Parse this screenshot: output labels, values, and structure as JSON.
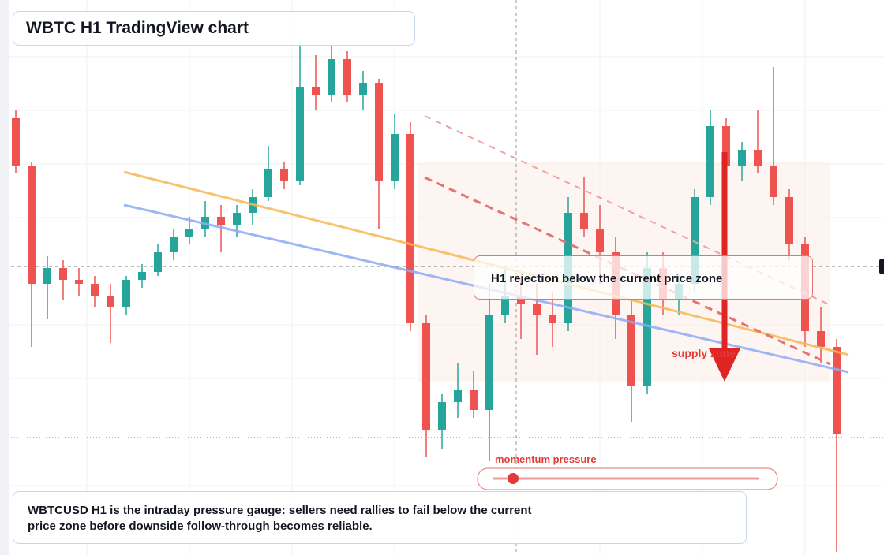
{
  "chart_data": {
    "type": "candlestick",
    "title": "WBTC H1 TradingView chart",
    "ohlc": [
      [
        850,
        860,
        780,
        790
      ],
      [
        790,
        795,
        560,
        640
      ],
      [
        640,
        675,
        595,
        660
      ],
      [
        660,
        670,
        620,
        645
      ],
      [
        645,
        660,
        625,
        640
      ],
      [
        640,
        650,
        610,
        625
      ],
      [
        625,
        640,
        565,
        610
      ],
      [
        610,
        650,
        600,
        645
      ],
      [
        645,
        665,
        635,
        655
      ],
      [
        655,
        690,
        650,
        680
      ],
      [
        680,
        710,
        670,
        700
      ],
      [
        700,
        725,
        690,
        710
      ],
      [
        710,
        745,
        700,
        725
      ],
      [
        725,
        740,
        680,
        715
      ],
      [
        715,
        740,
        700,
        730
      ],
      [
        730,
        760,
        715,
        750
      ],
      [
        750,
        815,
        745,
        785
      ],
      [
        785,
        795,
        760,
        770
      ],
      [
        770,
        945,
        765,
        890
      ],
      [
        890,
        930,
        860,
        880
      ],
      [
        880,
        945,
        870,
        925
      ],
      [
        925,
        935,
        870,
        880
      ],
      [
        880,
        910,
        860,
        895
      ],
      [
        895,
        900,
        710,
        770
      ],
      [
        770,
        855,
        760,
        830
      ],
      [
        830,
        845,
        580,
        590
      ],
      [
        590,
        600,
        420,
        455
      ],
      [
        455,
        500,
        430,
        490
      ],
      [
        490,
        540,
        470,
        505
      ],
      [
        505,
        530,
        470,
        480
      ],
      [
        480,
        640,
        415,
        600
      ],
      [
        600,
        660,
        590,
        625
      ],
      [
        625,
        650,
        570,
        615
      ],
      [
        615,
        640,
        550,
        600
      ],
      [
        600,
        630,
        560,
        590
      ],
      [
        590,
        750,
        580,
        730
      ],
      [
        730,
        775,
        700,
        710
      ],
      [
        710,
        740,
        640,
        680
      ],
      [
        680,
        700,
        570,
        600
      ],
      [
        600,
        620,
        465,
        510
      ],
      [
        510,
        680,
        500,
        660
      ],
      [
        660,
        680,
        600,
        620
      ],
      [
        620,
        650,
        600,
        640
      ],
      [
        640,
        760,
        630,
        750
      ],
      [
        750,
        860,
        740,
        840
      ],
      [
        840,
        850,
        770,
        790
      ],
      [
        790,
        820,
        770,
        810
      ],
      [
        810,
        860,
        780,
        790
      ],
      [
        790,
        915,
        740,
        750
      ],
      [
        750,
        760,
        670,
        690
      ],
      [
        690,
        700,
        560,
        580
      ],
      [
        580,
        610,
        540,
        560
      ],
      [
        560,
        570,
        300,
        450
      ]
    ],
    "ylim": [
      296,
      1000
    ],
    "up_color": "#26a69a",
    "down_color": "#ef5350",
    "callout": "H1 rejection below the current price zone",
    "supply_label": "supply zone",
    "gauge_label": "momentum pressure",
    "note": "WBTCUSD H1 is the intraday pressure gauge: sellers need rallies to fail below the current price zone before downside follow-through becomes reliable."
  }
}
